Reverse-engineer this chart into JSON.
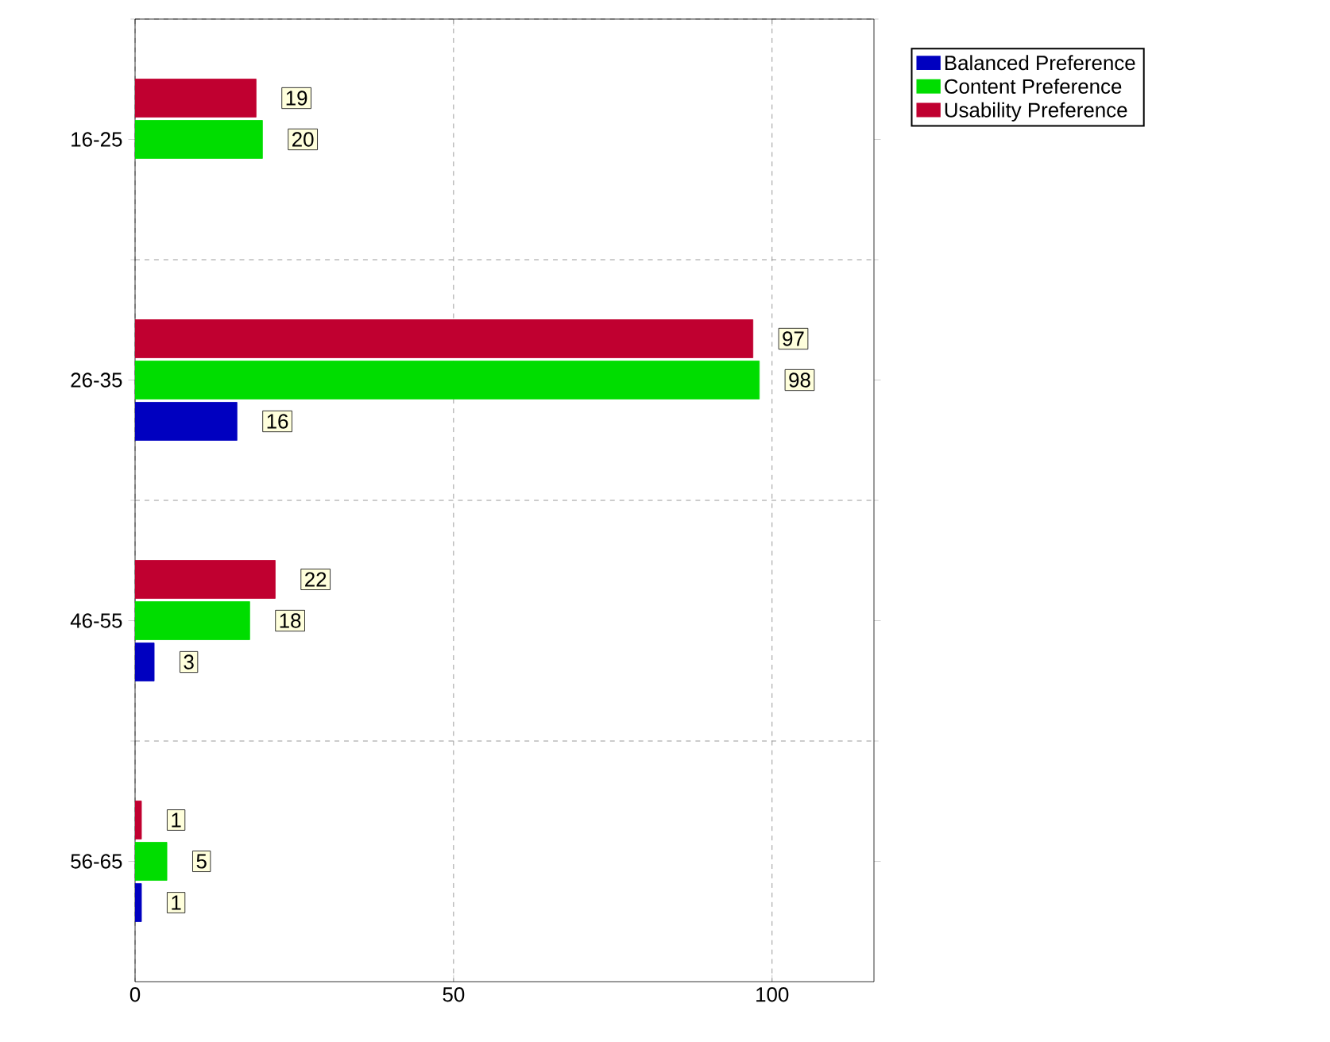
{
  "chart_data": {
    "type": "bar",
    "orientation": "horizontal",
    "categories": [
      "16-25",
      "26-35",
      "46-55",
      "56-65"
    ],
    "series": [
      {
        "name": "Balanced Preference",
        "color": "#0000c0",
        "values": [
          null,
          16,
          3,
          1
        ]
      },
      {
        "name": "Content Preference",
        "color": "#00dd00",
        "values": [
          20,
          98,
          18,
          5
        ]
      },
      {
        "name": "Usability Preference",
        "color": "#c00030",
        "values": [
          19,
          97,
          22,
          1
        ]
      }
    ],
    "xlim": [
      0,
      116
    ],
    "xticks": [
      0,
      50,
      100
    ],
    "grid": true,
    "legend": "top right",
    "data_labels": true
  }
}
